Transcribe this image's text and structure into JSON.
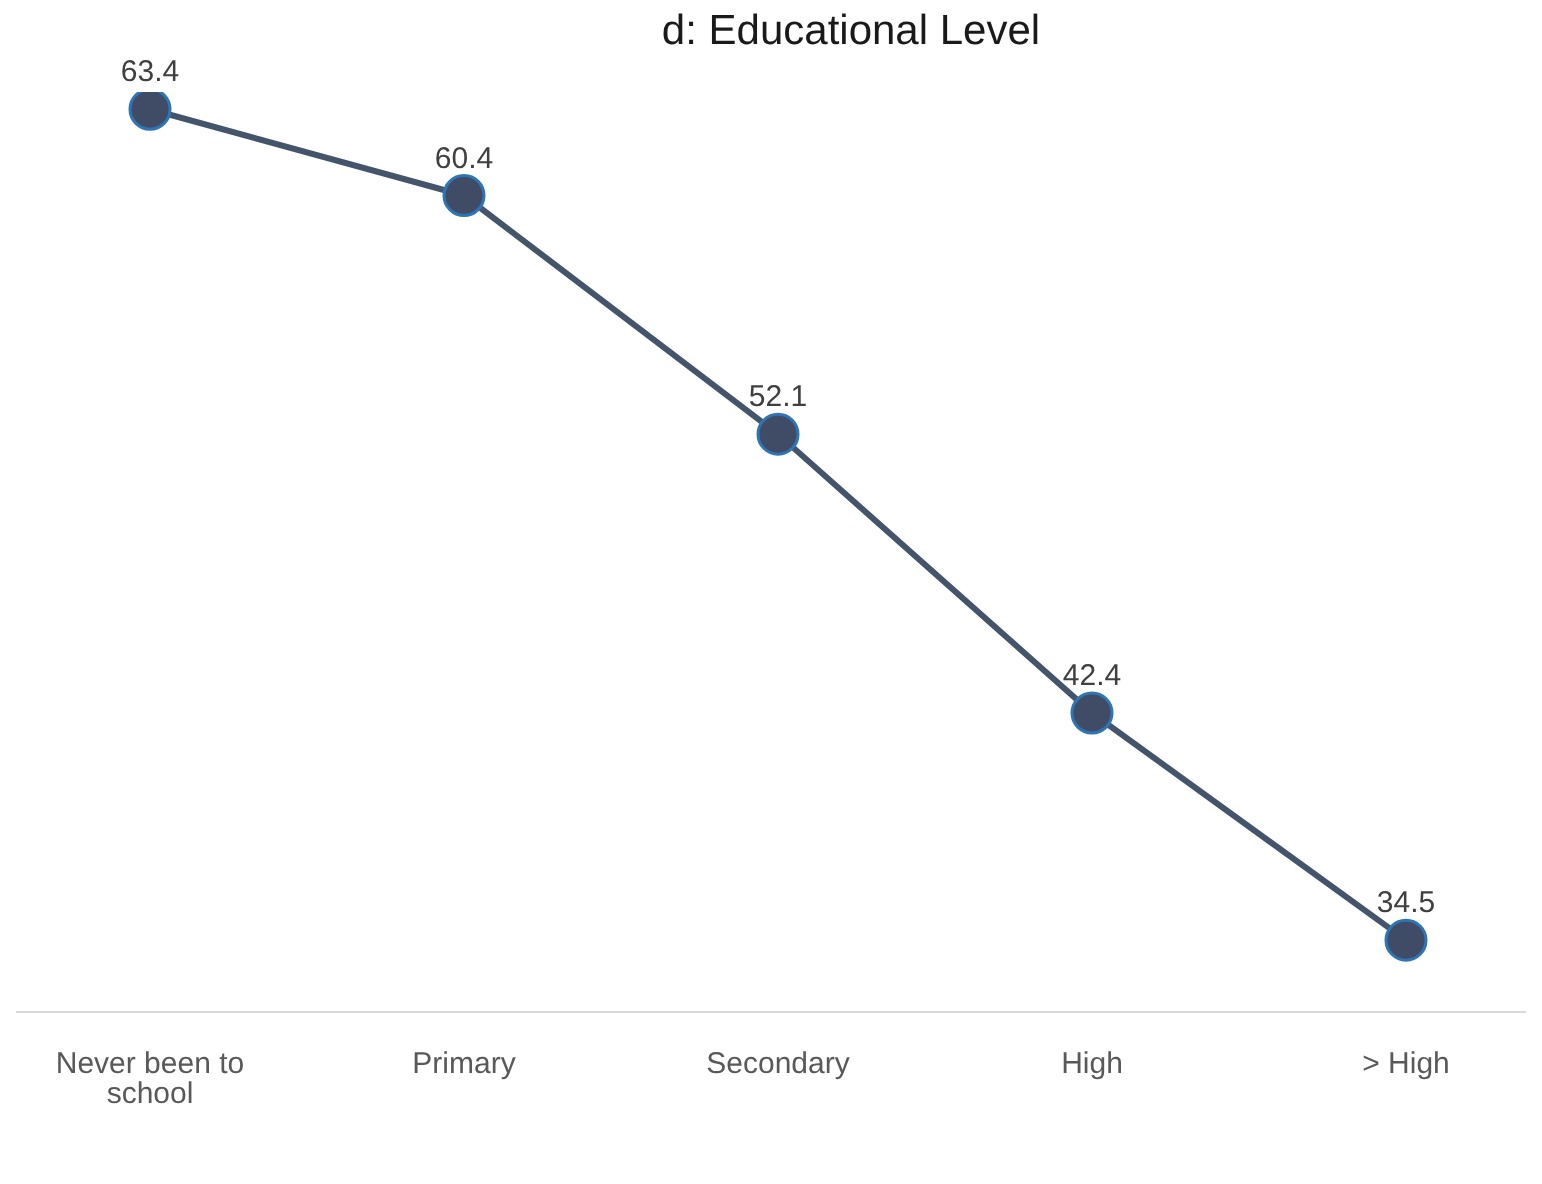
{
  "chart_data": {
    "type": "line",
    "title": "d: Educational Level",
    "categories": [
      "Never been to school",
      "Primary",
      "Secondary",
      "High",
      "> High"
    ],
    "series": [
      {
        "color": "#44546a",
        "values": [
          63.4,
          60.4,
          52.1,
          42.4,
          34.5
        ]
      }
    ],
    "data_labels": true,
    "marker": "circle",
    "line_style": "solid",
    "grid": false,
    "legend": false,
    "tick_labels": "x"
  }
}
